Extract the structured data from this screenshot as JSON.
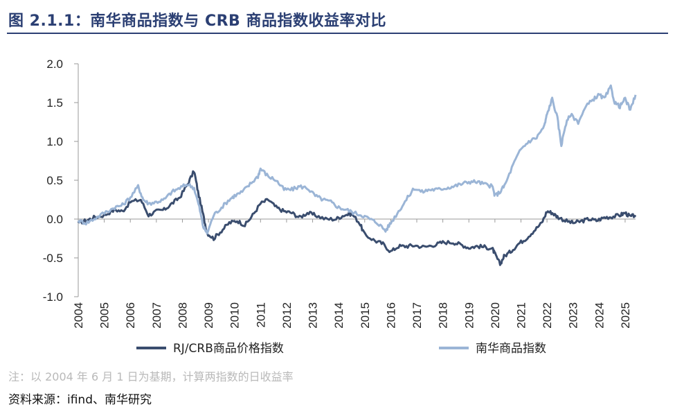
{
  "title": "图 2.1.1：南华商品指数与 CRB 商品指数收益率对比",
  "note": "注：以 2004 年 6 月 1 日为基期，计算两指数的日收益率",
  "source": "资料来源：ifind、南华研究",
  "colors": {
    "title": "#2b3f73",
    "rj_crb": "#3a4d6e",
    "nanhua": "#9bb5d6",
    "axis": "#9a9a9a"
  },
  "chart_data": {
    "type": "line",
    "title": "南华商品指数与 CRB 商品指数收益率对比",
    "xlabel": "",
    "ylabel": "",
    "ylim": [
      -1.0,
      2.0
    ],
    "yticks": [
      2.0,
      1.5,
      1.0,
      0.5,
      0.0,
      -0.5,
      -1.0
    ],
    "ytick_labels": [
      "2.0",
      "1.5",
      "1.0",
      "0.5",
      "0.0",
      "-0.5",
      "-1.0"
    ],
    "xlim": [
      2004,
      2025.4
    ],
    "xticks": [
      "2004",
      "2005",
      "2006",
      "2007",
      "2008",
      "2009",
      "2010",
      "2011",
      "2012",
      "2013",
      "2014",
      "2015",
      "2016",
      "2017",
      "2018",
      "2019",
      "2020",
      "2021",
      "2022",
      "2023",
      "2024",
      "2025"
    ],
    "grid": false,
    "legend": "bottom",
    "series": [
      {
        "name": "RJ/CRB商品价格指数",
        "color": "#3a4d6e",
        "x": [
          2004.0,
          2004.3,
          2004.6,
          2005.0,
          2005.4,
          2005.7,
          2006.0,
          2006.4,
          2006.7,
          2007.0,
          2007.3,
          2007.6,
          2007.9,
          2008.2,
          2008.45,
          2008.6,
          2008.8,
          2008.95,
          2009.2,
          2009.5,
          2009.8,
          2010.1,
          2010.4,
          2010.7,
          2011.0,
          2011.3,
          2011.6,
          2011.9,
          2012.2,
          2012.5,
          2012.8,
          2013.1,
          2013.5,
          2013.9,
          2014.2,
          2014.5,
          2014.8,
          2015.0,
          2015.4,
          2015.7,
          2016.0,
          2016.3,
          2016.6,
          2016.9,
          2017.3,
          2017.7,
          2018.0,
          2018.4,
          2018.7,
          2019.0,
          2019.3,
          2019.6,
          2019.9,
          2020.0,
          2020.2,
          2020.35,
          2020.6,
          2020.9,
          2021.2,
          2021.5,
          2021.8,
          2022.0,
          2022.2,
          2022.4,
          2022.7,
          2023.0,
          2023.3,
          2023.6,
          2023.9,
          2024.2,
          2024.5,
          2024.8,
          2025.0,
          2025.2,
          2025.4
        ],
        "y": [
          -0.05,
          -0.02,
          0.02,
          0.05,
          0.12,
          0.1,
          0.22,
          0.25,
          0.05,
          0.1,
          0.12,
          0.2,
          0.28,
          0.45,
          0.62,
          0.35,
          0.05,
          -0.18,
          -0.25,
          -0.15,
          -0.05,
          -0.02,
          -0.08,
          0.05,
          0.2,
          0.25,
          0.15,
          0.1,
          0.08,
          0.02,
          0.08,
          0.05,
          0.0,
          0.0,
          0.05,
          0.07,
          -0.05,
          -0.2,
          -0.28,
          -0.32,
          -0.42,
          -0.35,
          -0.35,
          -0.34,
          -0.36,
          -0.33,
          -0.3,
          -0.3,
          -0.33,
          -0.37,
          -0.35,
          -0.36,
          -0.38,
          -0.45,
          -0.58,
          -0.48,
          -0.42,
          -0.32,
          -0.25,
          -0.15,
          -0.05,
          0.1,
          0.08,
          0.03,
          -0.02,
          -0.05,
          -0.03,
          0.0,
          -0.02,
          0.02,
          0.03,
          0.05,
          0.08,
          0.03,
          0.05
        ]
      },
      {
        "name": "南华商品指数",
        "color": "#9bb5d6",
        "x": [
          2004.0,
          2004.3,
          2004.6,
          2005.0,
          2005.4,
          2005.7,
          2006.0,
          2006.3,
          2006.5,
          2006.7,
          2007.0,
          2007.3,
          2007.6,
          2007.9,
          2008.2,
          2008.45,
          2008.65,
          2008.8,
          2008.95,
          2009.2,
          2009.5,
          2009.8,
          2010.0,
          2010.3,
          2010.6,
          2010.9,
          2011.0,
          2011.3,
          2011.6,
          2011.9,
          2012.2,
          2012.5,
          2012.8,
          2013.1,
          2013.4,
          2013.7,
          2014.0,
          2014.3,
          2014.6,
          2014.9,
          2015.2,
          2015.5,
          2015.8,
          2016.0,
          2016.3,
          2016.6,
          2016.9,
          2017.2,
          2017.5,
          2017.8,
          2018.1,
          2018.4,
          2018.7,
          2019.0,
          2019.3,
          2019.6,
          2019.9,
          2020.0,
          2020.2,
          2020.4,
          2020.7,
          2021.0,
          2021.3,
          2021.6,
          2021.9,
          2022.0,
          2022.2,
          2022.4,
          2022.55,
          2022.7,
          2022.9,
          2023.2,
          2023.5,
          2023.8,
          2024.0,
          2024.2,
          2024.45,
          2024.6,
          2024.8,
          2025.0,
          2025.2,
          2025.4
        ],
        "y": [
          -0.02,
          -0.05,
          0.0,
          0.08,
          0.15,
          0.18,
          0.28,
          0.42,
          0.25,
          0.2,
          0.22,
          0.25,
          0.35,
          0.4,
          0.45,
          0.4,
          0.15,
          -0.1,
          -0.18,
          0.05,
          0.15,
          0.25,
          0.3,
          0.35,
          0.45,
          0.55,
          0.65,
          0.55,
          0.5,
          0.38,
          0.38,
          0.42,
          0.4,
          0.3,
          0.25,
          0.22,
          0.15,
          0.12,
          0.08,
          0.05,
          0.0,
          -0.05,
          -0.15,
          -0.05,
          0.1,
          0.25,
          0.4,
          0.35,
          0.38,
          0.38,
          0.4,
          0.42,
          0.45,
          0.48,
          0.48,
          0.45,
          0.42,
          0.3,
          0.35,
          0.45,
          0.7,
          0.9,
          1.0,
          1.05,
          1.2,
          1.35,
          1.55,
          1.3,
          0.95,
          1.2,
          1.35,
          1.25,
          1.45,
          1.55,
          1.6,
          1.55,
          1.7,
          1.5,
          1.45,
          1.55,
          1.4,
          1.6
        ]
      }
    ]
  }
}
